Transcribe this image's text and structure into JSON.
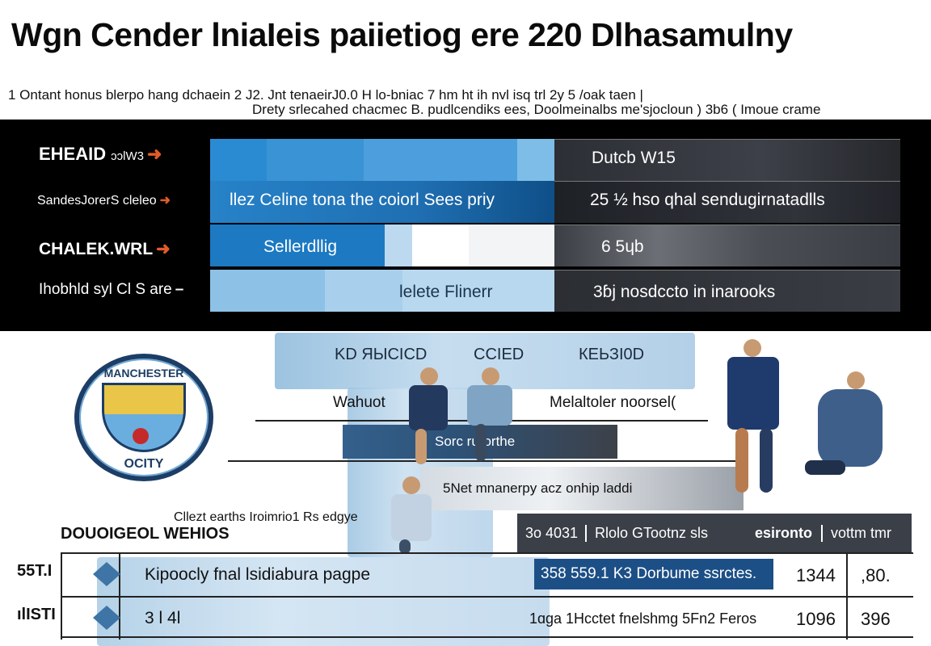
{
  "title": "Wgn Cender lniaIeis paiietiog ere 220 Dlhasamulny",
  "subtitle_line1": "1 Ontant honus blerpo hang dchaein 2 J2. Jnt tenaeirJ0.0 H lo-bniac 7  hm ht ih nvl isq trl 2y 5 /oak taen |",
  "subtitle_line2": "Drety srlecahed chacmec B. pudlcendiks ees, Doolmeinalbs me'sjocloun )  3b6 ( Imoue crame",
  "band": {
    "rows": [
      {
        "label": "EHEAID",
        "label_small": "ɔɔlW3",
        "left_text": "",
        "right_text": "Dutcb W15"
      },
      {
        "label": "SandesJorerS cleleo",
        "label_small": "",
        "left_text": "llez Celine tona the coiorl Sees priy",
        "right_text": "25 ½ hso qhal sendugirnatadlls"
      },
      {
        "label": "CHALEK.WRL",
        "label_small": "",
        "left_text": "Sellerdllig",
        "right_text": "6 5ɥb"
      },
      {
        "label": "Ihobhld syl Cl S are",
        "label_small": "",
        "left_text": "lelete Flinerr",
        "right_text": "3ɓj nosdccto in inarooks"
      }
    ],
    "colors": {
      "accent_blue": "#2f86c8",
      "dark_blue": "#0d4f86",
      "grey": "#3a3d44"
    }
  },
  "illustration": {
    "cloud_headers": [
      "KD ЯЫСICD",
      "CCIED",
      "КЕЬЗI0D"
    ],
    "left_label": "Wahuot",
    "right_label": "Melaltoler noorsel(",
    "bar1_text": "Sorc rurorthe",
    "bar2_text": "5Net mnanerpy acz onhip laddi",
    "logo_top": "MANCHESTER",
    "logo_bottom": "OCITY",
    "logo_icon": "crest-icon"
  },
  "table": {
    "section_label": "DOUOIGEOL WEHIOS",
    "section_note": "Cllezt earths Iroimrio1 Rs edgye",
    "header_cells": [
      "3o 4031",
      "Rlolo GTootnz sls",
      "esironto",
      "vottm tmr"
    ],
    "rows": [
      {
        "rank": "55T.I",
        "name": "Kipoocly fnal lsidiabura pagpe",
        "pill": "358 559.1 K3 Dorbume ssrctes.",
        "mid": "",
        "c1": "1344",
        "c2": ",80."
      },
      {
        "rank": "ılISTI",
        "name": "3 l 4l",
        "pill": "",
        "mid": "1ɑga   1Hcctet fnelshmg 5Fn2 Feros",
        "c1": "1096",
        "c2": "396"
      }
    ]
  }
}
